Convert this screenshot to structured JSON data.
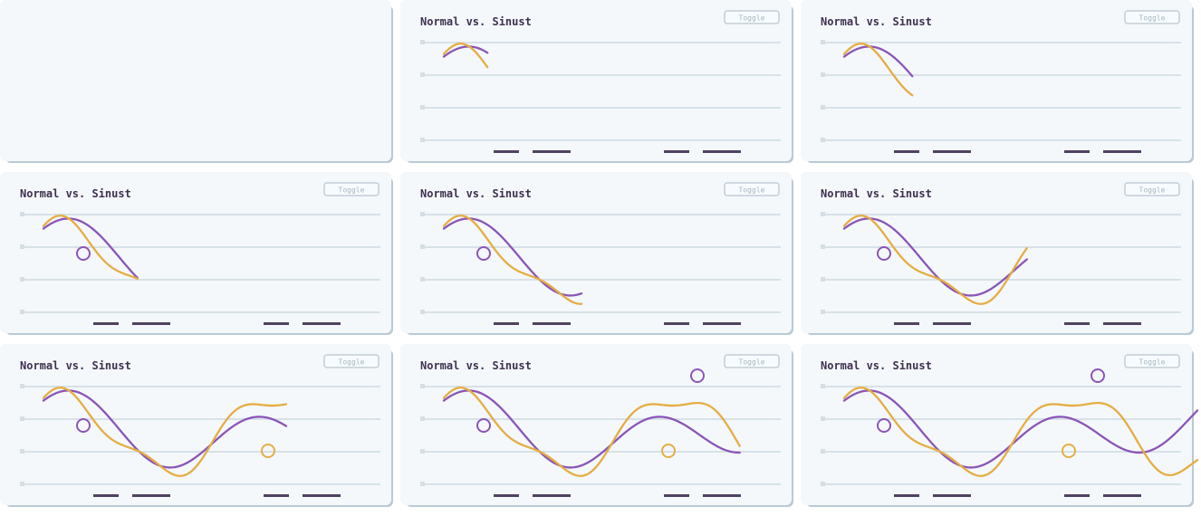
{
  "layout": {
    "rows": 3,
    "cols": 3
  },
  "panels": [
    {
      "title": "",
      "button_label": "",
      "empty": true
    },
    {
      "title": "Normal vs. Sinust",
      "button_label": "Toggle"
    },
    {
      "title": "Normal vs. Sinust",
      "button_label": "Toggle"
    },
    {
      "title": "Normal vs. Sinust",
      "button_label": "Toggle"
    },
    {
      "title": "Normal vs. Sinust",
      "button_label": "Toggle"
    },
    {
      "title": "Normal vs. Sinust",
      "button_label": "Toggle"
    },
    {
      "title": "Normal vs. Sinust",
      "button_label": "Toggle"
    },
    {
      "title": "Normal vs. Sinust",
      "button_label": "Toggle"
    },
    {
      "title": "Normal vs. Sinust",
      "button_label": "Toggle"
    }
  ],
  "colors": {
    "panel_bg": "#f4f8fb",
    "panel_shadow": "#b9cad6",
    "grid_line": "#d7e1e8",
    "title_text": "#3f304f",
    "tick_marks": "#d8dde1",
    "axis_text": "#4f4360",
    "button_border": "#c2ced7",
    "button_text": "#a8b6c1",
    "series_normal": "#8b55b8",
    "series_sinust": "#e5ad43"
  },
  "chart_data": [
    {
      "type": "line",
      "frame": 2,
      "progress": 0.125,
      "title": "Normal vs. Sinust",
      "series": []
    },
    {
      "type": "line",
      "frame": 3,
      "progress": 0.195,
      "title": "Normal vs. Sinust",
      "series": []
    },
    {
      "type": "line",
      "frame": 4,
      "progress": 0.27,
      "title": "Normal vs. Sinust",
      "series": []
    },
    {
      "type": "line",
      "frame": 5,
      "progress": 0.39,
      "title": "Normal vs. Sinust",
      "series": []
    },
    {
      "type": "line",
      "frame": 6,
      "progress": 0.52,
      "title": "Normal vs. Sinust",
      "series": []
    },
    {
      "type": "line",
      "frame": 7,
      "progress": 0.69,
      "title": "Normal vs. Sinust",
      "series": []
    },
    {
      "type": "line",
      "frame": 8,
      "progress": 0.84,
      "title": "Normal vs. Sinust",
      "series": []
    },
    {
      "type": "line",
      "frame": 9,
      "progress": 1.0,
      "title": "Normal vs. Sinust",
      "series": []
    }
  ]
}
